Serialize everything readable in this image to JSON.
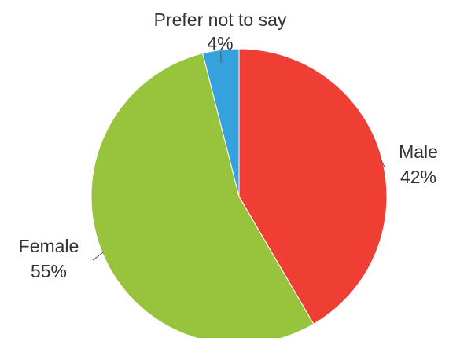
{
  "chart_data": {
    "type": "pie",
    "slices": [
      {
        "label": "Male",
        "pct_label": "42%",
        "value": 42,
        "color": "#ef3e33"
      },
      {
        "label": "Female",
        "pct_label": "55%",
        "value": 55,
        "color": "#98c33c"
      },
      {
        "label": "Prefer not to say",
        "pct_label": "4%",
        "value": 4,
        "color": "#36a2dd"
      }
    ],
    "start_angle_deg": 0,
    "direction": "clockwise",
    "legend": "none"
  }
}
